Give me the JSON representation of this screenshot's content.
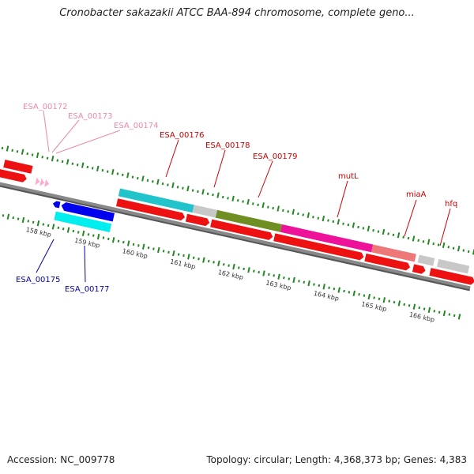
{
  "title": "Cronobacter sakazakii ATCC BAA-894 chromosome, complete geno...",
  "footer": {
    "accession": "Accession: NC_009778",
    "summary": "Topology: circular; Length: 4,368,373 bp; Genes: 4,383"
  },
  "colors": {
    "forward_label": "#cc0000",
    "reverse_label": "#0000aa",
    "pink_label": "#ee88aa",
    "cds": "#ee1111",
    "backbone": "#777777",
    "gc_ticks": "#228822"
  },
  "upper_labels": [
    {
      "text": "ESA_00172",
      "color": "#ee88aa"
    },
    {
      "text": "ESA_00173",
      "color": "#ee88aa"
    },
    {
      "text": "ESA_00174",
      "color": "#ee88aa"
    },
    {
      "text": "ESA_00176",
      "color": "#cc0000"
    },
    {
      "text": "ESA_00178",
      "color": "#cc0000"
    },
    {
      "text": "ESA_00179",
      "color": "#cc0000"
    },
    {
      "text": "mutL",
      "color": "#cc0000"
    },
    {
      "text": "miaA",
      "color": "#cc0000"
    },
    {
      "text": "hfq",
      "color": "#cc0000"
    }
  ],
  "lower_labels": [
    {
      "text": "ESA_00175",
      "color": "#0000aa"
    },
    {
      "text": "ESA_00177",
      "color": "#0000aa"
    }
  ],
  "scale_labels": [
    "158 kbp",
    "159 kbp",
    "160 kbp",
    "161 kbp",
    "162 kbp",
    "163 kbp",
    "164 kbp",
    "165 kbp",
    "166 kbp"
  ],
  "genes": [
    {
      "name": "gene-cds-a",
      "color": "#ee1111",
      "track": "fwd-top"
    },
    {
      "name": "gene-cds-b",
      "color": "#ee1111",
      "track": "fwd"
    },
    {
      "name": "gene-esa-00176-cog",
      "color": "#22c4cc",
      "track": "cog"
    },
    {
      "name": "gene-esa-00178-cog",
      "color": "#c8c8c8",
      "track": "cog"
    },
    {
      "name": "gene-esa-00179-cog",
      "color": "#6f8f22",
      "track": "cog"
    },
    {
      "name": "gene-mutl-cog",
      "color": "#ee1199",
      "track": "cog"
    },
    {
      "name": "gene-miaa-cog",
      "color": "#ee7777",
      "track": "cog"
    },
    {
      "name": "gene-hfq-cog",
      "color": "#c8c8c8",
      "track": "cog"
    },
    {
      "name": "gene-esa-00175",
      "color": "#0000ee",
      "track": "rev"
    },
    {
      "name": "gene-esa-00177-cog",
      "color": "#00eeee",
      "track": "rev-cog"
    }
  ]
}
